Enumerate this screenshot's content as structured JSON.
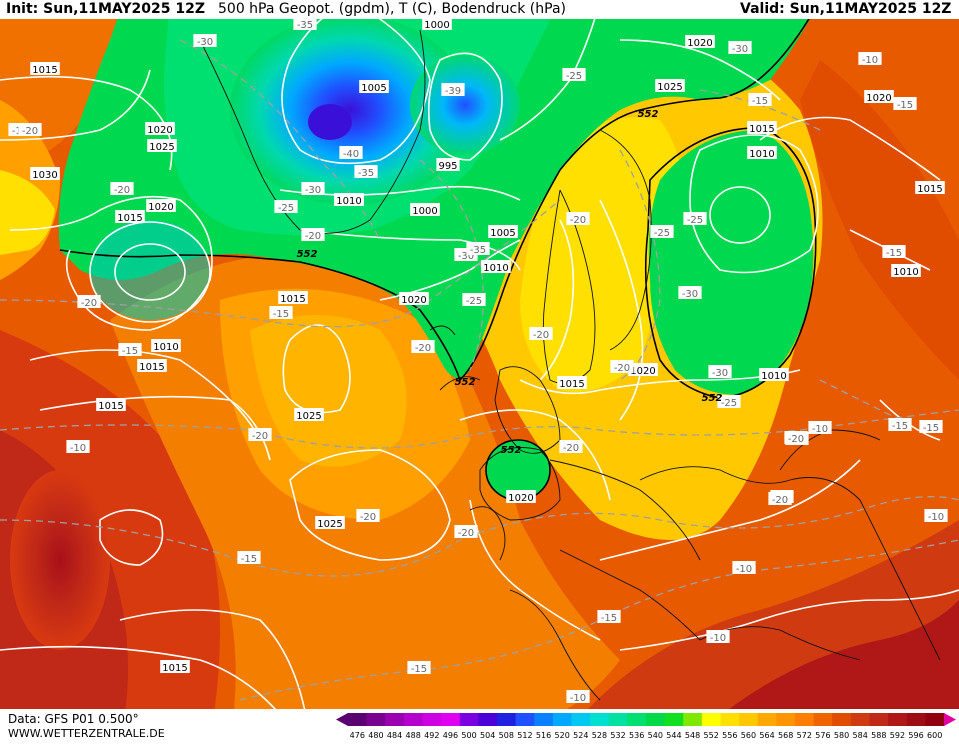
{
  "header": {
    "init": "Init: Sun,11MAY2025 12Z",
    "title": "500 hPa Geopot. (gpdm), T (C), Bodendruck (hPa)",
    "valid": "Valid: Sun,11MAY2025 12Z"
  },
  "footer": {
    "data_source": "Data: GFS P01 0.500°",
    "website": "WWW.WETTERZENTRALE.DE"
  },
  "pressure_labels": [
    "1000",
    "1015",
    "1020",
    "1025",
    "1005",
    "1030",
    "1010",
    "1015",
    "1020",
    "995",
    "1010",
    "1000",
    "1005",
    "1010",
    "1020",
    "1015",
    "1025",
    "1020",
    "1020",
    "1015",
    "1025",
    "1010",
    "1015",
    "1010",
    "1015",
    "1020",
    "1010",
    "1020",
    "1025",
    "1015",
    "1010",
    "1015",
    "1015"
  ],
  "temperature_labels": [
    "-35",
    "-30",
    "-25",
    "-39",
    "-30",
    "-40",
    "-35",
    "-30",
    "-25",
    "-20",
    "-30",
    "-35",
    "-25",
    "-25",
    "-20",
    "-25",
    "-20",
    "-30",
    "-20",
    "-15",
    "-20",
    "-30",
    "-25",
    "-20",
    "-20",
    "-20",
    "-15",
    "-20",
    "-15",
    "-20",
    "-10",
    "-20",
    "-15",
    "-15",
    "-20",
    "-15",
    "-10",
    "-10",
    "-15",
    "-10",
    "-10",
    "-15",
    "-10",
    "-15",
    "-20",
    "-15",
    "-20",
    "-10",
    "-15",
    "-20",
    "-15"
  ],
  "geopotential_labels": [
    "552",
    "552",
    "552",
    "552",
    "552"
  ],
  "color_scale": {
    "ticks": [
      "476",
      "480",
      "484",
      "488",
      "492",
      "496",
      "500",
      "504",
      "508",
      "512",
      "516",
      "520",
      "524",
      "528",
      "532",
      "536",
      "540",
      "544",
      "548",
      "552",
      "556",
      "560",
      "564",
      "568",
      "572",
      "576",
      "580",
      "584",
      "588",
      "592",
      "596",
      "600"
    ],
    "colors": [
      "#5a0070",
      "#7a0090",
      "#9a00b0",
      "#b400cc",
      "#cc00e0",
      "#e000f0",
      "#7a00e0",
      "#4b00d8",
      "#2020e0",
      "#2050ff",
      "#0a80ff",
      "#00a8ff",
      "#00c8f0",
      "#00e0d0",
      "#00e0a0",
      "#00e070",
      "#00d848",
      "#10e020",
      "#80e800",
      "#ffff00",
      "#ffe000",
      "#ffc800",
      "#ffa800",
      "#ff9400",
      "#ff7e00",
      "#f06400",
      "#e04c00",
      "#d03a10",
      "#c02818",
      "#b01818",
      "#a00c14",
      "#900010"
    ]
  }
}
